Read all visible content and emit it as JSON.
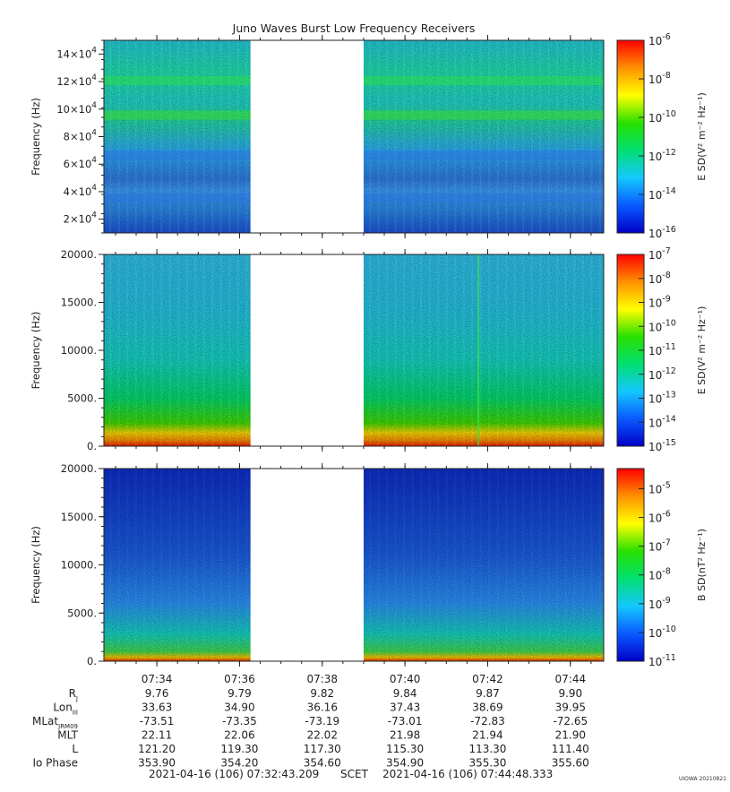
{
  "title": "Juno Waves Burst Low Frequency Receivers",
  "colors": {
    "colorbar_stops": [
      "#0000c8",
      "#0a5aff",
      "#14c8ff",
      "#00e070",
      "#28e000",
      "#ffff00",
      "#ff9000",
      "#ff0000"
    ],
    "gap": "#ffffff",
    "axis": "#222222"
  },
  "chart_data": [
    {
      "type": "heatmap",
      "name": "panel-1",
      "ylabel": "Frequency (Hz)",
      "ylim": [
        10000,
        150000
      ],
      "yticks": [
        {
          "value": 20000,
          "mant": "2×10",
          "exp": "4"
        },
        {
          "value": 40000,
          "mant": "4×10",
          "exp": "4"
        },
        {
          "value": 60000,
          "mant": "6×10",
          "exp": "4"
        },
        {
          "value": 80000,
          "mant": "8×10",
          "exp": "4"
        },
        {
          "value": 100000,
          "mant": "10×10",
          "exp": "4"
        },
        {
          "value": 120000,
          "mant": "12×10",
          "exp": "4"
        },
        {
          "value": 140000,
          "mant": "14×10",
          "exp": "4"
        }
      ],
      "colorbar": {
        "label": "E SD(V² m⁻² Hz⁻¹)",
        "log_range": [
          -16,
          -6
        ],
        "ticks": [
          {
            "exp": "-6",
            "value": -6
          },
          {
            "exp": "-8",
            "value": -8
          },
          {
            "exp": "-10",
            "value": -10
          },
          {
            "exp": "-12",
            "value": -12
          },
          {
            "exp": "-14",
            "value": -14
          },
          {
            "exp": "-16",
            "value": -16
          }
        ]
      }
    },
    {
      "type": "heatmap",
      "name": "panel-2",
      "ylabel": "Frequency (Hz)",
      "ylim": [
        0,
        20000
      ],
      "yticks": [
        {
          "value": 0,
          "label": "0."
        },
        {
          "value": 5000,
          "label": "5000."
        },
        {
          "value": 10000,
          "label": "10000."
        },
        {
          "value": 15000,
          "label": "15000."
        },
        {
          "value": 20000,
          "label": "20000."
        }
      ],
      "colorbar": {
        "label": "E SD(V² m⁻² Hz⁻¹)",
        "log_range": [
          -15,
          -7
        ],
        "ticks": [
          {
            "exp": "-7",
            "value": -7
          },
          {
            "exp": "-8",
            "value": -8
          },
          {
            "exp": "-9",
            "value": -9
          },
          {
            "exp": "-10",
            "value": -10
          },
          {
            "exp": "-11",
            "value": -11
          },
          {
            "exp": "-12",
            "value": -12
          },
          {
            "exp": "-13",
            "value": -13
          },
          {
            "exp": "-14",
            "value": -14
          },
          {
            "exp": "-15",
            "value": -15
          }
        ]
      }
    },
    {
      "type": "heatmap",
      "name": "panel-3",
      "ylabel": "Frequency (Hz)",
      "ylim": [
        0,
        20000
      ],
      "yticks": [
        {
          "value": 0,
          "label": "0."
        },
        {
          "value": 5000,
          "label": "5000."
        },
        {
          "value": 10000,
          "label": "10000."
        },
        {
          "value": 15000,
          "label": "15000."
        },
        {
          "value": 20000,
          "label": "20000."
        }
      ],
      "colorbar": {
        "label": "B SD(nT² Hz⁻¹)",
        "log_range": [
          -11,
          -4.3
        ],
        "ticks": [
          {
            "exp": "-5",
            "value": -5
          },
          {
            "exp": "-6",
            "value": -6
          },
          {
            "exp": "-7",
            "value": -7
          },
          {
            "exp": "-8",
            "value": -8
          },
          {
            "exp": "-9",
            "value": -9
          },
          {
            "exp": "-10",
            "value": -10
          },
          {
            "exp": "-11",
            "value": -11
          }
        ]
      }
    }
  ],
  "time_axis": {
    "start": "07:32:43.209",
    "end": "07:44:48.333",
    "gap_start": "07:36:16",
    "gap_end": "07:39:00",
    "tick_labels": [
      "07:34",
      "07:36",
      "07:38",
      "07:40",
      "07:42",
      "07:44"
    ]
  },
  "ephemeris": {
    "rows": [
      {
        "label": "R",
        "sub": "J",
        "values": [
          "9.76",
          "9.79",
          "9.82",
          "9.84",
          "9.87",
          "9.90"
        ]
      },
      {
        "label": "Lon",
        "sub": "III",
        "values": [
          "33.63",
          "34.90",
          "36.16",
          "37.43",
          "38.69",
          "39.95"
        ]
      },
      {
        "label": "MLat",
        "sub": "JRM09",
        "values": [
          "-73.51",
          "-73.35",
          "-73.19",
          "-73.01",
          "-72.83",
          "-72.65"
        ]
      },
      {
        "label": "MLT",
        "sub": "",
        "values": [
          "22.11",
          "22.06",
          "22.02",
          "21.98",
          "21.94",
          "21.90"
        ]
      },
      {
        "label": "L",
        "sub": "",
        "values": [
          "121.20",
          "119.30",
          "117.30",
          "115.30",
          "113.30",
          "111.40"
        ]
      },
      {
        "label": "Io Phase",
        "sub": "",
        "values": [
          "353.90",
          "354.20",
          "354.60",
          "354.90",
          "355.30",
          "355.60"
        ]
      }
    ]
  },
  "footer": {
    "start": "2021-04-16 (106) 07:32:43.209",
    "scet": "SCET",
    "end": "2021-04-16 (106) 07:44:48.333"
  },
  "stamp": "UIOWA 20210821"
}
